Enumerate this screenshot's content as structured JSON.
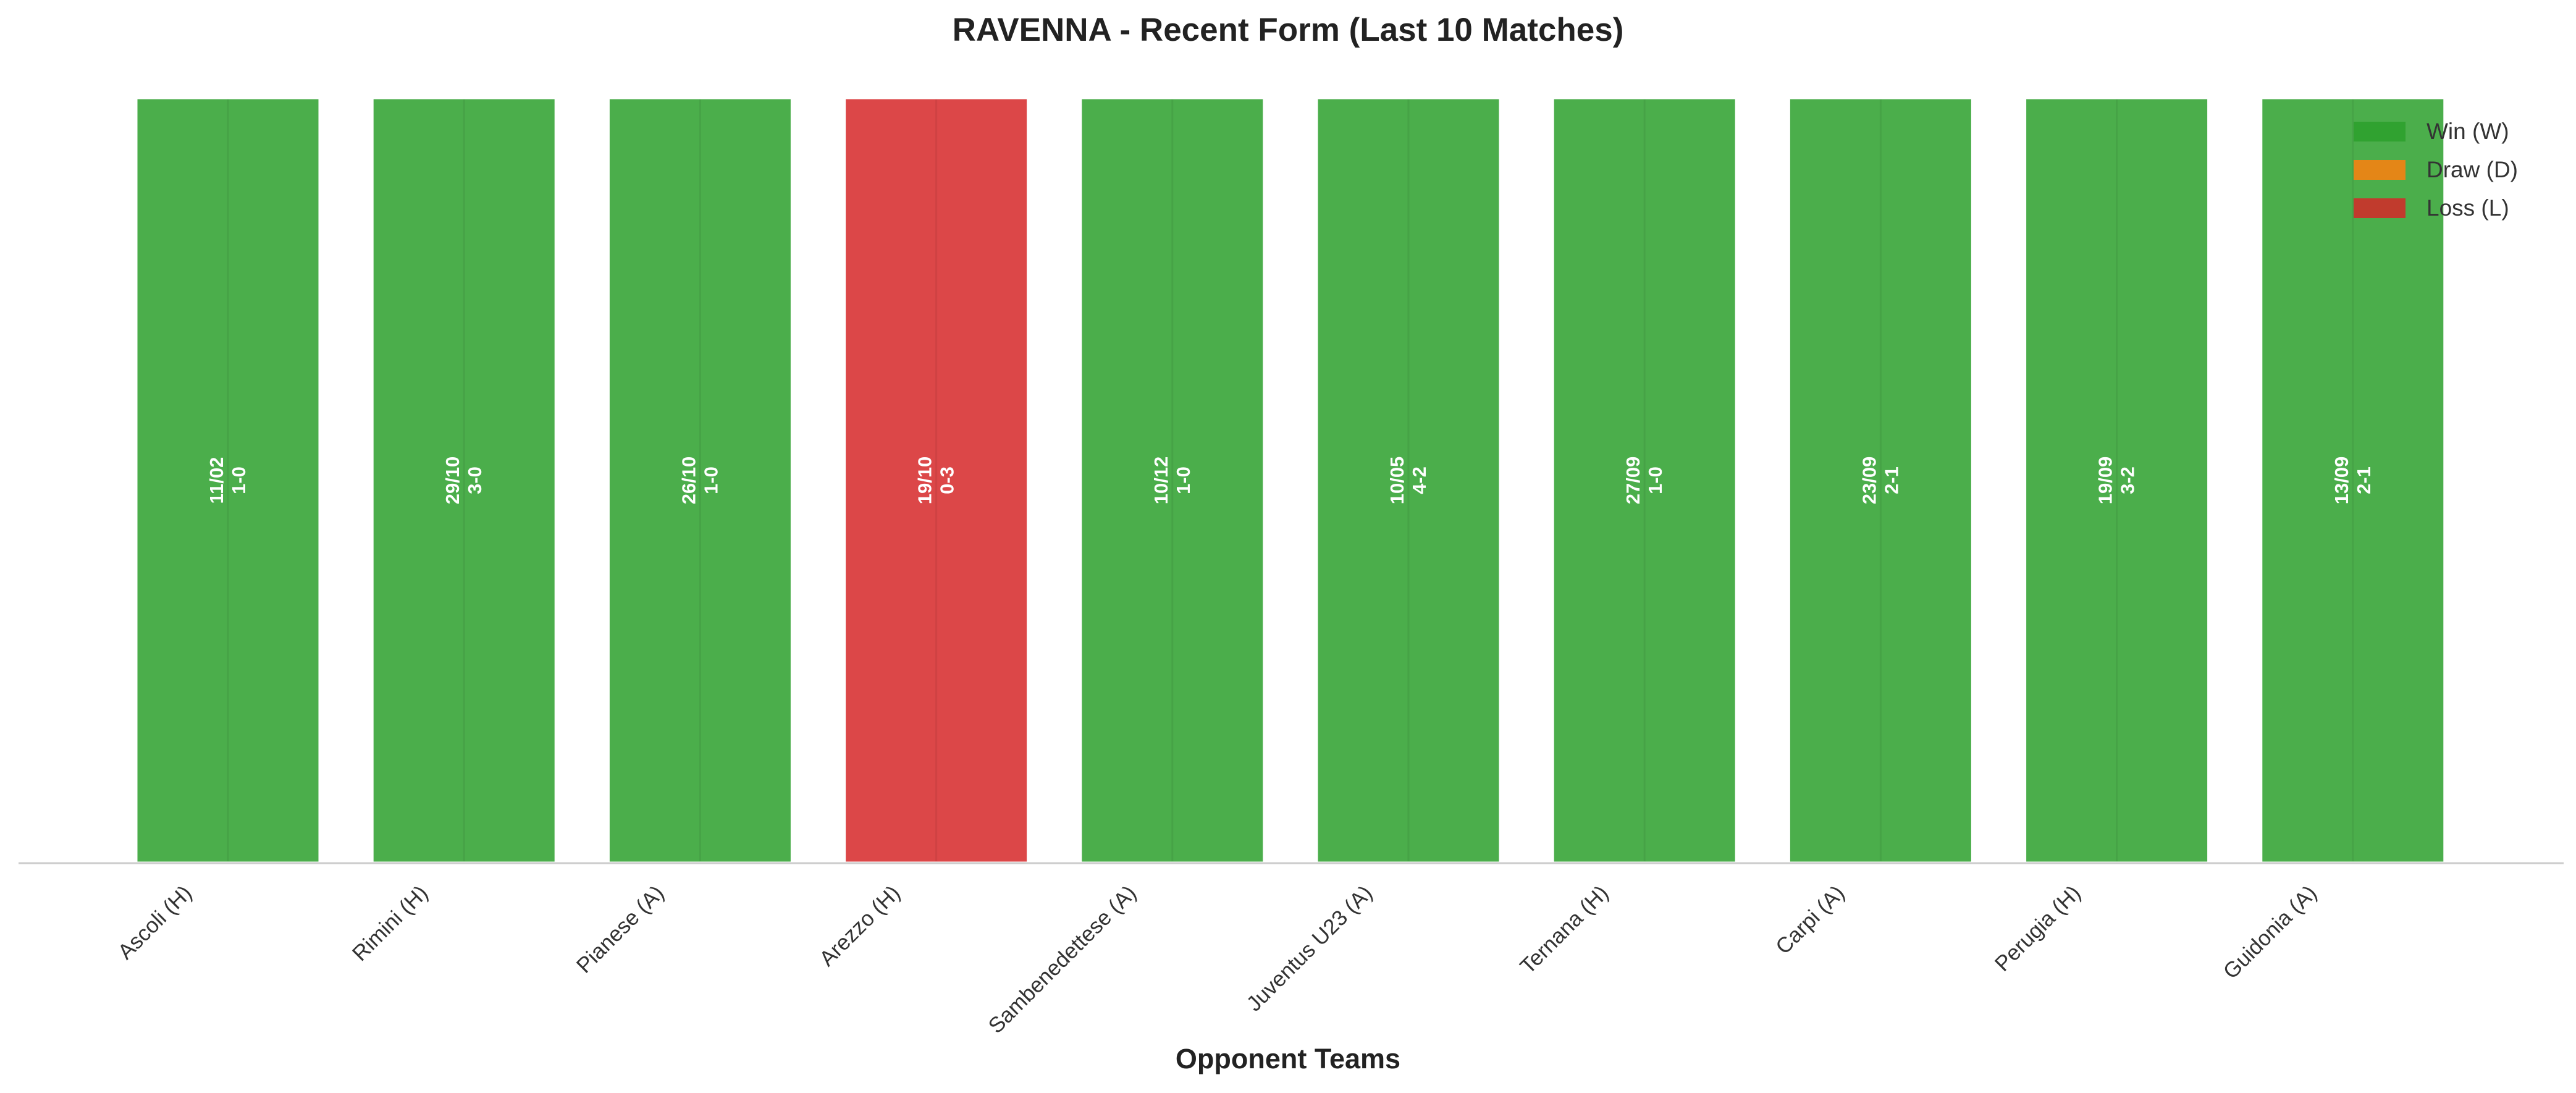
{
  "chart_data": {
    "type": "bar",
    "title": "RAVENNA - Recent Form (Last 10 Matches)",
    "xlabel": "Opponent Teams",
    "ylabel": "",
    "ylim": [
      0,
      1
    ],
    "grid": false,
    "legend_position": "top-right",
    "categories": [
      "Ascoli (H)",
      "Rimini (H)",
      "Pianese (A)",
      "Arezzo (H)",
      "Sambenedettese (A)",
      "Juventus U23 (A)",
      "Ternana (H)",
      "Carpi (A)",
      "Perugia (H)",
      "Guidonia (A)"
    ],
    "values": [
      1,
      1,
      1,
      1,
      1,
      1,
      1,
      1,
      1,
      1
    ],
    "results": [
      "W",
      "W",
      "W",
      "L",
      "W",
      "W",
      "W",
      "W",
      "W",
      "W"
    ],
    "bar_labels": [
      {
        "date": "11/02",
        "score": "1-0"
      },
      {
        "date": "29/10",
        "score": "3-0"
      },
      {
        "date": "26/10",
        "score": "1-0"
      },
      {
        "date": "19/10",
        "score": "0-3"
      },
      {
        "date": "10/12",
        "score": "1-0"
      },
      {
        "date": "10/05",
        "score": "4-2"
      },
      {
        "date": "27/09",
        "score": "1-0"
      },
      {
        "date": "23/09",
        "score": "2-1"
      },
      {
        "date": "19/09",
        "score": "3-2"
      },
      {
        "date": "13/09",
        "score": "2-1"
      }
    ],
    "legend": [
      {
        "key": "W",
        "label": "Win (W)",
        "color": "#2ca02c"
      },
      {
        "key": "D",
        "label": "Draw (D)",
        "color": "#ff7f0e"
      },
      {
        "key": "L",
        "label": "Loss (L)",
        "color": "#d62728"
      }
    ]
  }
}
